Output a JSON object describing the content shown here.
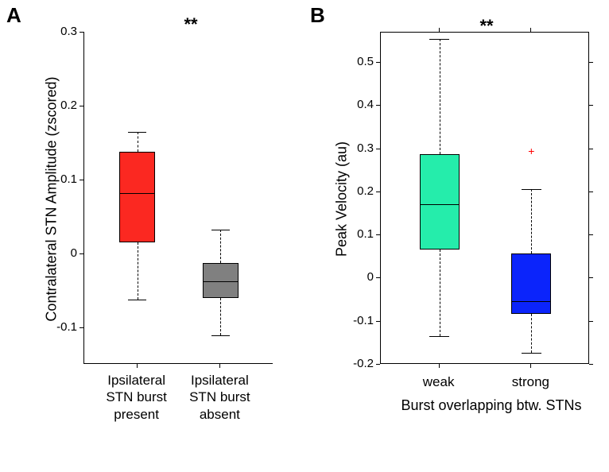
{
  "panelA": {
    "label": "A",
    "type": "boxplot",
    "ylabel": "Contralateral STN Amplitude (zscored)",
    "significance_label": "**",
    "ylim": [
      -0.149,
      0.3
    ],
    "yticks": [
      -0.1,
      0,
      0.1,
      0.2,
      0.3
    ],
    "ytick_labels": [
      "-0.1",
      "0",
      "0.1",
      "0.2",
      "0.3"
    ],
    "categories": [
      "Ipsilateral\nSTN burst\npresent",
      "Ipsilateral\nSTN burst\nabsent"
    ],
    "x_positions": [
      0.28,
      0.72
    ],
    "box_width": 0.19,
    "boxes": [
      {
        "q1": 0.015,
        "median": 0.082,
        "q3": 0.138,
        "whisker_low": -0.062,
        "whisker_high": 0.165,
        "fill": "#fb2821",
        "outliers": []
      },
      {
        "q1": -0.06,
        "median": -0.037,
        "q3": -0.013,
        "whisker_low": -0.11,
        "whisker_high": 0.033,
        "fill": "#808080",
        "outliers": []
      }
    ],
    "label_fontsize": 18,
    "tick_fontsize": 15,
    "background_color": "#ffffff"
  },
  "panelB": {
    "label": "B",
    "type": "boxplot",
    "ylabel": "Peak Velocity (au)",
    "xlabel": "Burst overlapping btw. STNs",
    "significance_label": "**",
    "ylim": [
      -0.2,
      0.57
    ],
    "yticks": [
      -0.2,
      -0.1,
      0,
      0.1,
      0.2,
      0.3,
      0.4,
      0.5
    ],
    "ytick_labels": [
      "-0.2",
      "-0.1",
      "0",
      "0.1",
      "0.2",
      "0.3",
      "0.4",
      "0.5"
    ],
    "categories": [
      "weak",
      "strong"
    ],
    "x_positions": [
      0.28,
      0.72
    ],
    "box_width": 0.19,
    "boxes": [
      {
        "q1": 0.068,
        "median": 0.173,
        "q3": 0.288,
        "whisker_low": -0.133,
        "whisker_high": 0.555,
        "fill": "#25edab",
        "outliers": []
      },
      {
        "q1": -0.083,
        "median": -0.052,
        "q3": 0.057,
        "whisker_low": -0.173,
        "whisker_high": 0.207,
        "fill": "#0b24fb",
        "outliers": [
          0.295
        ]
      }
    ],
    "label_fontsize": 18,
    "tick_fontsize": 15,
    "background_color": "#ffffff"
  }
}
